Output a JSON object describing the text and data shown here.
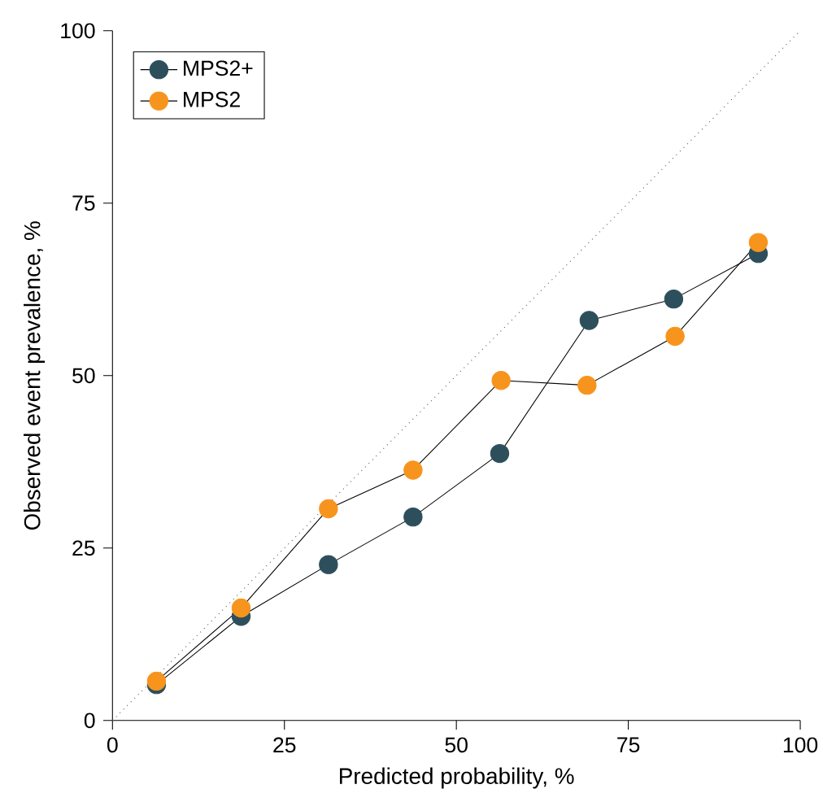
{
  "chart_data": {
    "type": "line",
    "xlabel": "Predicted probability, %",
    "ylabel": "Observed event prevalence, %",
    "xlim": [
      0,
      100
    ],
    "ylim": [
      0,
      100
    ],
    "xticks": [
      0,
      25,
      50,
      75,
      100
    ],
    "yticks": [
      0,
      25,
      50,
      75,
      100
    ],
    "legend": "top left",
    "marker": "circle",
    "x": [
      6.4,
      18.7,
      31.4,
      43.7,
      56.3,
      69.3,
      81.6,
      93.9
    ],
    "series": [
      {
        "x": [
          0,
          100
        ],
        "values": [
          0,
          100
        ],
        "color": "#555555",
        "line_style": "dotted",
        "marker": "none"
      },
      {
        "name": "MPS2+",
        "color": "#2d4f5c",
        "values": [
          5.2,
          15.1,
          22.6,
          29.5,
          38.7,
          58.0,
          61.1,
          67.7
        ]
      },
      {
        "name": "MPS2",
        "color": "#f7941d",
        "x": [
          6.4,
          18.7,
          31.4,
          43.7,
          56.5,
          69.0,
          81.8,
          93.9
        ],
        "values": [
          5.7,
          16.3,
          30.7,
          36.3,
          49.3,
          48.6,
          55.7,
          69.3
        ]
      }
    ]
  }
}
